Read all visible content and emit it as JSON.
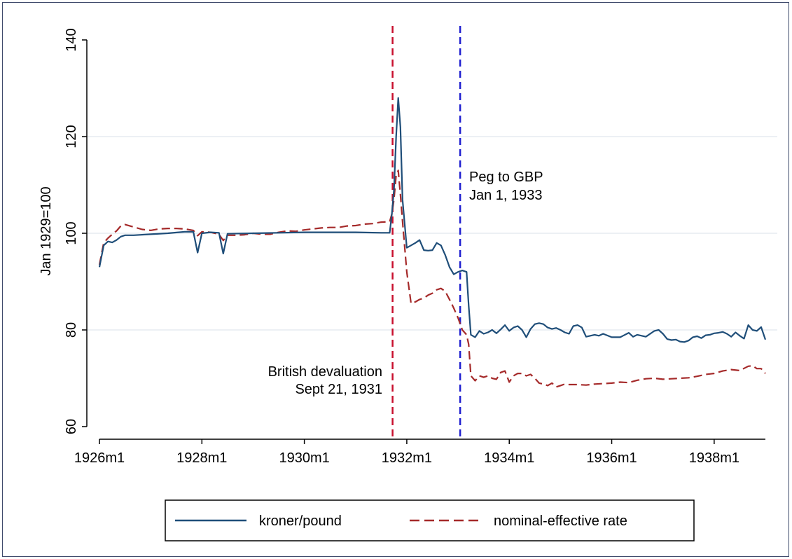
{
  "chart_data": {
    "type": "line",
    "title": "",
    "xlabel": "",
    "ylabel": "Jan 1929=100",
    "ylim": [
      60,
      140
    ],
    "yticks": [
      60,
      80,
      100,
      120,
      140
    ],
    "xticks": [
      {
        "label": "1926m1",
        "value": 0
      },
      {
        "label": "1928m1",
        "value": 24
      },
      {
        "label": "1930m1",
        "value": 48
      },
      {
        "label": "1932m1",
        "value": 72
      },
      {
        "label": "1934m1",
        "value": 96
      },
      {
        "label": "1936m1",
        "value": 120
      },
      {
        "label": "1938m1",
        "value": 144
      }
    ],
    "x_unit": "months since 1926m1",
    "grid": true,
    "legend_position": "bottom",
    "colors": {
      "kroner": "#1f4e79",
      "nominal": "#a52a2a",
      "devaluation_line": "#c8102e",
      "peg_line": "#1f1fcf"
    },
    "series": [
      {
        "name": "kroner/pound",
        "style": "solid",
        "points": [
          [
            0,
            93
          ],
          [
            1,
            97.5
          ],
          [
            2,
            98.3
          ],
          [
            3,
            98.1
          ],
          [
            4,
            98.6
          ],
          [
            5,
            99.3
          ],
          [
            6,
            99.6
          ],
          [
            8,
            99.6
          ],
          [
            12,
            99.8
          ],
          [
            16,
            100
          ],
          [
            20,
            100.3
          ],
          [
            22,
            100.3
          ],
          [
            23,
            96
          ],
          [
            24,
            100
          ],
          [
            26,
            100.2
          ],
          [
            28,
            100.1
          ],
          [
            29,
            95.8
          ],
          [
            30,
            99.9
          ],
          [
            36,
            100
          ],
          [
            42,
            100.1
          ],
          [
            48,
            100.2
          ],
          [
            54,
            100.2
          ],
          [
            60,
            100.2
          ],
          [
            66,
            100.1
          ],
          [
            68,
            100.1
          ],
          [
            68.5,
            104
          ],
          [
            69,
            109
          ],
          [
            69.5,
            120
          ],
          [
            70,
            128
          ],
          [
            70.5,
            122
          ],
          [
            71,
            107
          ],
          [
            72,
            97
          ],
          [
            73,
            97.5
          ],
          [
            74,
            98
          ],
          [
            75,
            98.6
          ],
          [
            76,
            96.5
          ],
          [
            77,
            96.4
          ],
          [
            78,
            96.5
          ],
          [
            79,
            98
          ],
          [
            80,
            97.5
          ],
          [
            81,
            95.5
          ],
          [
            82,
            93
          ],
          [
            83,
            91.5
          ],
          [
            84,
            92
          ],
          [
            85,
            92.3
          ],
          [
            86,
            92
          ],
          [
            86.5,
            85
          ],
          [
            87,
            79
          ],
          [
            88,
            78.5
          ],
          [
            89,
            79.8
          ],
          [
            90,
            79.2
          ],
          [
            91,
            79.5
          ],
          [
            92,
            80
          ],
          [
            93,
            79.3
          ],
          [
            94,
            80.1
          ],
          [
            95,
            81
          ],
          [
            96,
            79.8
          ],
          [
            97,
            80.5
          ],
          [
            98,
            80.8
          ],
          [
            99,
            80
          ],
          [
            100,
            78.5
          ],
          [
            101,
            80.2
          ],
          [
            102,
            81.2
          ],
          [
            103,
            81.4
          ],
          [
            104,
            81.2
          ],
          [
            105,
            80.5
          ],
          [
            106,
            80.2
          ],
          [
            107,
            80.4
          ],
          [
            108,
            80
          ],
          [
            109,
            79.5
          ],
          [
            110,
            79.2
          ],
          [
            111,
            80.8
          ],
          [
            112,
            81
          ],
          [
            113,
            80.5
          ],
          [
            114,
            78.6
          ],
          [
            115,
            78.8
          ],
          [
            116,
            79
          ],
          [
            117,
            78.8
          ],
          [
            118,
            79.2
          ],
          [
            120,
            78.5
          ],
          [
            122,
            78.5
          ],
          [
            124,
            79.4
          ],
          [
            125,
            78.6
          ],
          [
            126,
            79
          ],
          [
            128,
            78.6
          ],
          [
            130,
            79.8
          ],
          [
            131,
            80
          ],
          [
            132,
            79.2
          ],
          [
            133,
            78.1
          ],
          [
            134,
            77.9
          ],
          [
            135,
            78
          ],
          [
            136,
            77.6
          ],
          [
            137,
            77.5
          ],
          [
            138,
            77.8
          ],
          [
            139,
            78.5
          ],
          [
            140,
            78.7
          ],
          [
            141,
            78.3
          ],
          [
            142,
            78.9
          ],
          [
            143,
            79
          ],
          [
            144,
            79.3
          ],
          [
            145,
            79.4
          ],
          [
            146,
            79.6
          ],
          [
            147,
            79.2
          ],
          [
            148,
            78.6
          ],
          [
            149,
            79.5
          ],
          [
            150,
            78.8
          ],
          [
            151,
            78.2
          ],
          [
            152,
            81
          ],
          [
            153,
            80
          ],
          [
            154,
            79.8
          ],
          [
            155,
            80.6
          ],
          [
            156,
            78
          ]
        ]
      },
      {
        "name": "nominal-effective rate",
        "style": "dashed",
        "points": [
          [
            0,
            93.5
          ],
          [
            1,
            98
          ],
          [
            2,
            99
          ],
          [
            3,
            99.8
          ],
          [
            4,
            100.5
          ],
          [
            5,
            101.5
          ],
          [
            6,
            101.8
          ],
          [
            8,
            101.3
          ],
          [
            10,
            100.8
          ],
          [
            12,
            100.6
          ],
          [
            14,
            100.9
          ],
          [
            16,
            101
          ],
          [
            18,
            101
          ],
          [
            20,
            100.9
          ],
          [
            22,
            100.6
          ],
          [
            23,
            99.5
          ],
          [
            24,
            100.3
          ],
          [
            26,
            100.2
          ],
          [
            28,
            99.8
          ],
          [
            29,
            98.5
          ],
          [
            30,
            99.6
          ],
          [
            32,
            99.6
          ],
          [
            34,
            99.7
          ],
          [
            36,
            100
          ],
          [
            38,
            99.8
          ],
          [
            40,
            99.8
          ],
          [
            42,
            100.2
          ],
          [
            44,
            100.5
          ],
          [
            46,
            100.4
          ],
          [
            48,
            100.7
          ],
          [
            50,
            100.9
          ],
          [
            52,
            101.1
          ],
          [
            54,
            101.2
          ],
          [
            56,
            101.2
          ],
          [
            58,
            101.5
          ],
          [
            60,
            101.6
          ],
          [
            62,
            101.9
          ],
          [
            64,
            102
          ],
          [
            66,
            102.3
          ],
          [
            68,
            102.4
          ],
          [
            68.5,
            104
          ],
          [
            69,
            107
          ],
          [
            69.5,
            112
          ],
          [
            70,
            113
          ],
          [
            70.5,
            108
          ],
          [
            71,
            102.5
          ],
          [
            72,
            92
          ],
          [
            73,
            85.5
          ],
          [
            74,
            85.8
          ],
          [
            75,
            86.3
          ],
          [
            76,
            86.6
          ],
          [
            77,
            87.2
          ],
          [
            78,
            87.6
          ],
          [
            79,
            88.3
          ],
          [
            80,
            88.6
          ],
          [
            81,
            88
          ],
          [
            82,
            86.3
          ],
          [
            83,
            84.5
          ],
          [
            84,
            82.5
          ],
          [
            85,
            80
          ],
          [
            86,
            79
          ],
          [
            86.5,
            77
          ],
          [
            87,
            70.5
          ],
          [
            88,
            69.5
          ],
          [
            89,
            70.5
          ],
          [
            90,
            70.2
          ],
          [
            91,
            70.5
          ],
          [
            92,
            70
          ],
          [
            93,
            69.8
          ],
          [
            94,
            71.2
          ],
          [
            95,
            71.5
          ],
          [
            96,
            69.2
          ],
          [
            97,
            70.5
          ],
          [
            98,
            71
          ],
          [
            99,
            71
          ],
          [
            100,
            70.5
          ],
          [
            101,
            70.8
          ],
          [
            102,
            70
          ],
          [
            103,
            69
          ],
          [
            104,
            68.8
          ],
          [
            105,
            68.5
          ],
          [
            106,
            69
          ],
          [
            107,
            68.2
          ],
          [
            108,
            68.5
          ],
          [
            109,
            68.8
          ],
          [
            110,
            68.7
          ],
          [
            112,
            68.7
          ],
          [
            114,
            68.6
          ],
          [
            116,
            68.8
          ],
          [
            118,
            68.9
          ],
          [
            120,
            69
          ],
          [
            122,
            69.2
          ],
          [
            124,
            69.1
          ],
          [
            126,
            69.6
          ],
          [
            128,
            69.9
          ],
          [
            130,
            70
          ],
          [
            132,
            69.8
          ],
          [
            134,
            69.9
          ],
          [
            136,
            70
          ],
          [
            138,
            70.1
          ],
          [
            140,
            70.4
          ],
          [
            142,
            70.8
          ],
          [
            144,
            71
          ],
          [
            146,
            71.5
          ],
          [
            148,
            71.8
          ],
          [
            150,
            71.6
          ],
          [
            152,
            72.5
          ],
          [
            153,
            72.6
          ],
          [
            154,
            72
          ],
          [
            155,
            72
          ],
          [
            156,
            71
          ]
        ]
      }
    ],
    "vlines": [
      {
        "x": 68.67,
        "color": "devaluation_line"
      },
      {
        "x": 84.5,
        "color": "peg_line"
      }
    ],
    "annotations": [
      {
        "lines": [
          "British devaluation",
          "Sept 21, 1931"
        ],
        "anchor": "end"
      },
      {
        "lines": [
          "Peg to GBP",
          "Jan 1, 1933"
        ],
        "anchor": "start"
      }
    ]
  }
}
